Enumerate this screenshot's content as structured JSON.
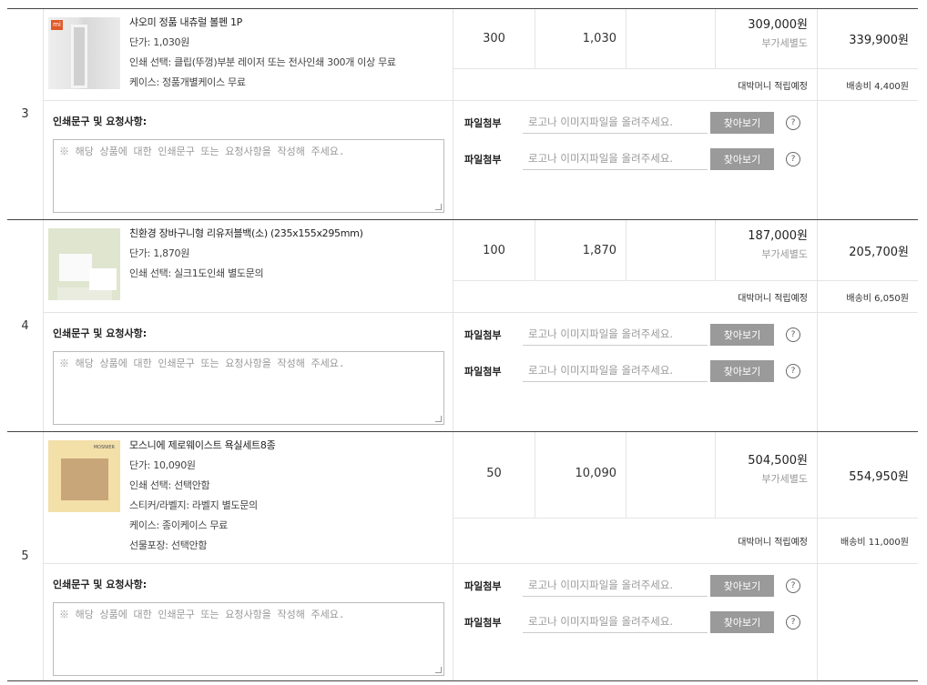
{
  "memo_label": "인쇄문구 및 요청사항:",
  "memo_placeholder": "※ 해당 상품에 대한 인쇄문구 또는 요청사항을 작성해 주세요.",
  "file_label": "파일첨부",
  "file_placeholder": "로고나 이미지파일을 올려주세요.",
  "browse_label": "찾아보기",
  "help_icon": "?",
  "vat_label": "부가세별도",
  "point_label": "대박머니 적립예정",
  "items": [
    {
      "no": "3",
      "name": "샤오미 정품 내츄럴 볼펜 1P",
      "options": [
        "단가: 1,030원",
        "인쇄 선택: 클립(뚜껑)부분 레이저 또는 전사인쇄 300개 이상 무료",
        "케이스: 정품개별케이스 무료"
      ],
      "qty": "300",
      "unit_price": "1,030",
      "price": "309,000원",
      "total": "339,900원",
      "shipping": "배송비 4,400원",
      "thumb": "mi"
    },
    {
      "no": "4",
      "name": "친환경 장바구니형 리유저블백(소) (235x155x295mm)",
      "options": [
        "단가: 1,870원",
        "인쇄 선택: 실크1도인쇄 별도문의"
      ],
      "qty": "100",
      "unit_price": "1,870",
      "price": "187,000원",
      "total": "205,700원",
      "shipping": "배송비 6,050원",
      "thumb": "bag"
    },
    {
      "no": "5",
      "name": "모스니에 제로웨이스트 욕실세트8종",
      "options": [
        "단가: 10,090원",
        "인쇄 선택: 선택안함",
        "스티커/라벨지: 라벨지 별도문의",
        "케이스: 종이케이스 무료",
        "선물포장: 선택안함"
      ],
      "qty": "50",
      "unit_price": "10,090",
      "price": "504,500원",
      "total": "554,950원",
      "shipping": "배송비 11,000원",
      "thumb": "MOSNIER"
    }
  ]
}
